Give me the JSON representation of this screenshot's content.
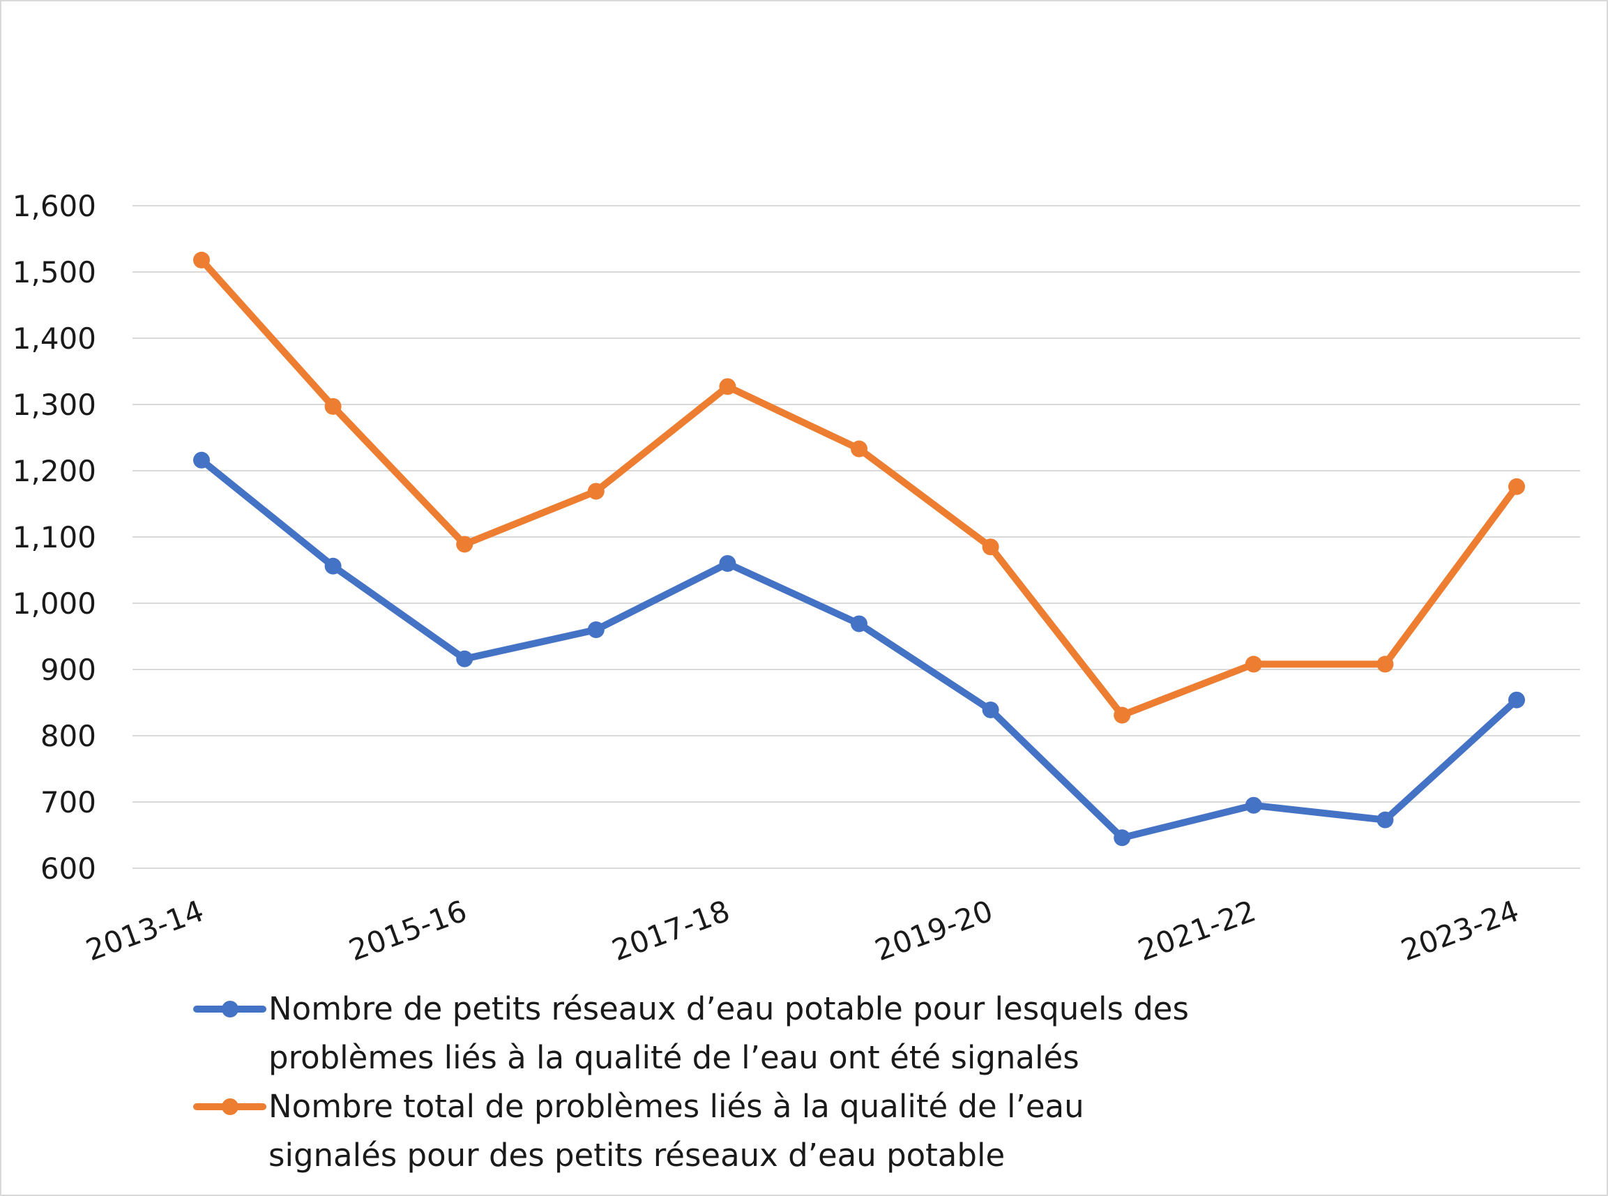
{
  "chart_data": {
    "type": "line",
    "categories": [
      "2013-14",
      "2014-15",
      "2015-16",
      "2016-17",
      "2017-18",
      "2018-19",
      "2019-20",
      "2020-21",
      "2021-22",
      "2022-23",
      "2023-24"
    ],
    "x_tick_labels": [
      "2013-14",
      "2015-16",
      "2017-18",
      "2019-20",
      "2021-22",
      "2023-24"
    ],
    "x_tick_indices": [
      0,
      2,
      4,
      6,
      8,
      10
    ],
    "y_tick_labels": [
      "600",
      "700",
      "800",
      "900",
      "1,000",
      "1,100",
      "1,200",
      "1,300",
      "1,400",
      "1,500",
      "1,600"
    ],
    "ylim": [
      600,
      1600
    ],
    "ystep": 100,
    "grid": true,
    "legend_position": "bottom",
    "series": [
      {
        "name": "Nombre de petits réseaux d’eau potable pour lesquels des problèmes liés à la qualité de l’eau ont été signalés",
        "legend_lines": [
          "Nombre de petits réseaux d’eau potable pour lesquels des",
          "problèmes liés à la qualité de l’eau ont été signalés"
        ],
        "color": "#4472c4",
        "values": [
          1216,
          1056,
          916,
          960,
          1060,
          969,
          839,
          646,
          695,
          673,
          854
        ]
      },
      {
        "name": "Nombre total de problèmes liés à la qualité de l’eau signalés pour des petits réseaux d’eau potable",
        "legend_lines": [
          "Nombre total de problèmes liés à la qualité de l’eau",
          "signalés pour des petits réseaux d’eau potable"
        ],
        "color": "#ed7d31",
        "values": [
          1518,
          1297,
          1089,
          1169,
          1327,
          1233,
          1085,
          831,
          908,
          908,
          1176
        ]
      }
    ]
  }
}
